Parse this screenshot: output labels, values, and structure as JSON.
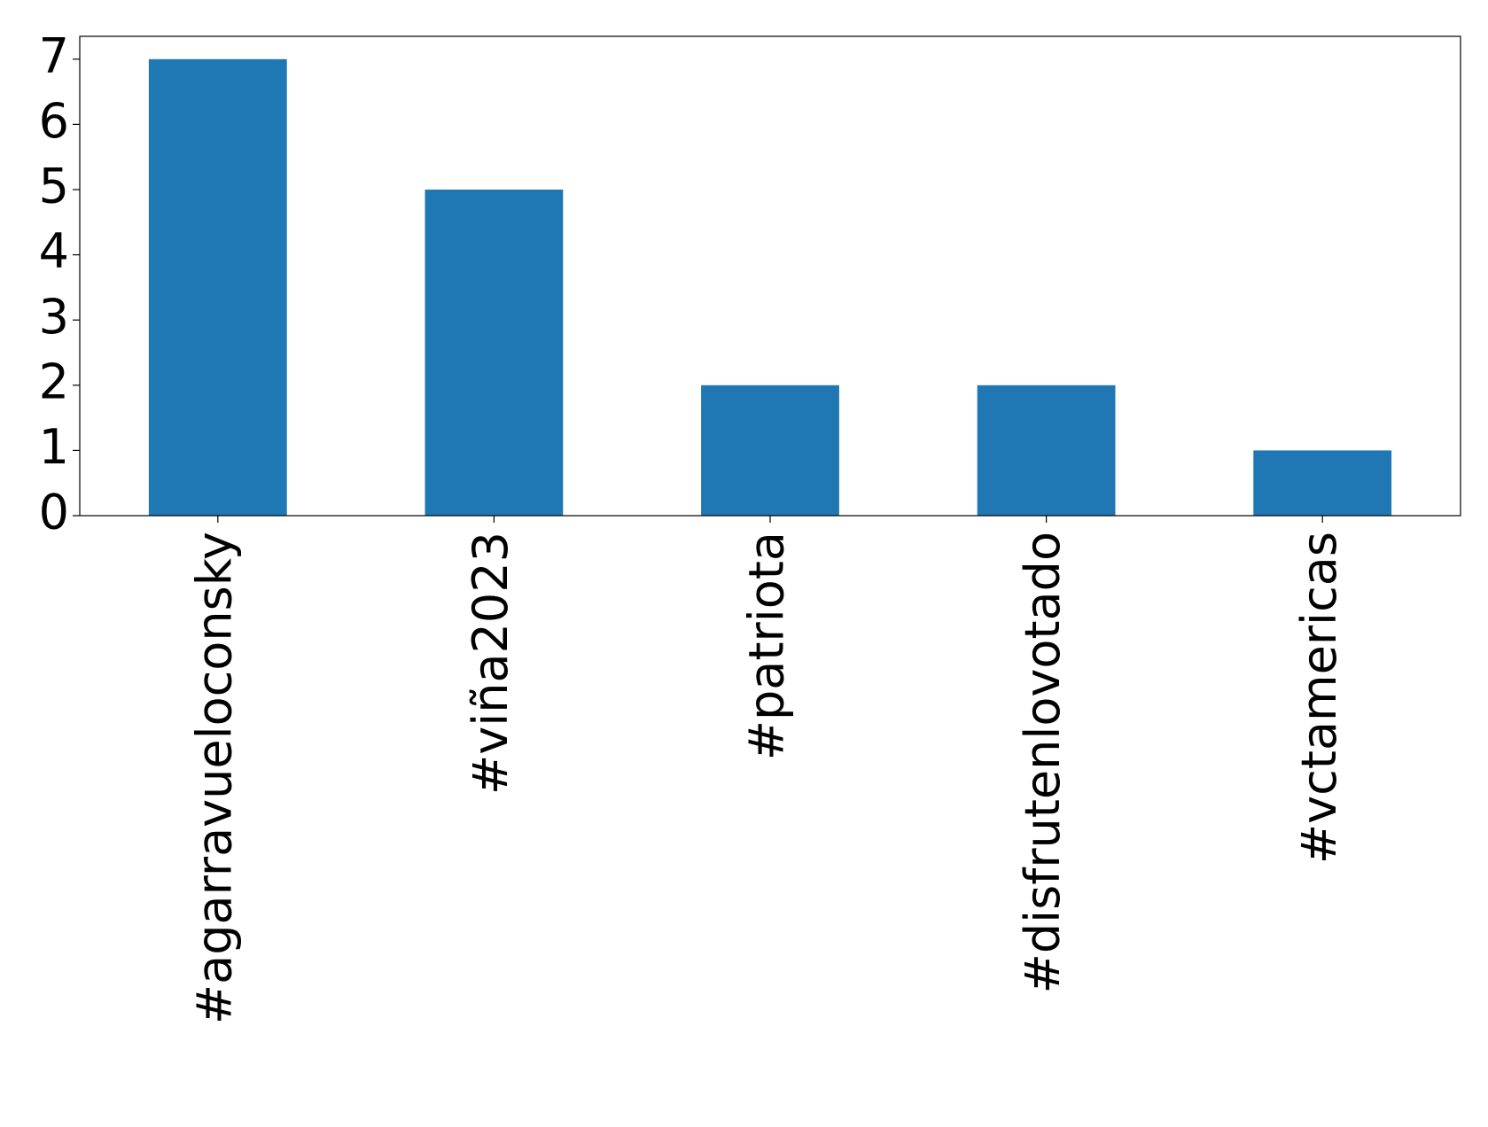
{
  "chart_data": {
    "type": "bar",
    "categories": [
      "#agarravueloconsky",
      "#viña2023",
      "#patriota",
      "#disfrutenlovotado",
      "#vctamericas"
    ],
    "values": [
      7,
      5,
      2,
      2,
      1
    ],
    "color": "#1f77b4",
    "ylim": [
      0,
      7.35
    ],
    "yticks": [
      0,
      1,
      2,
      3,
      4,
      5,
      6,
      7
    ],
    "grid": false
  }
}
